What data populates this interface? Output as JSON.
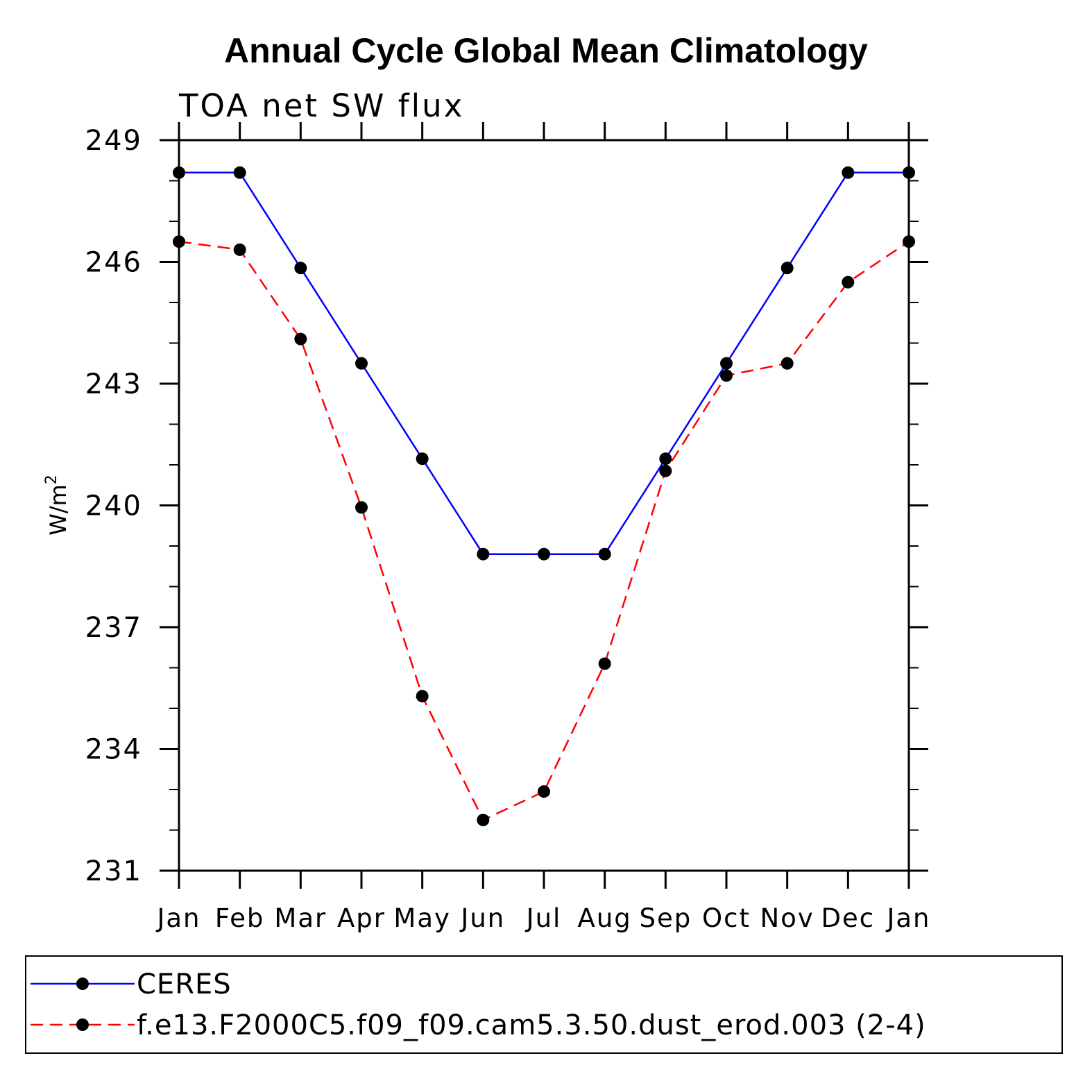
{
  "chart_data": {
    "type": "line",
    "title": "Annual Cycle Global Mean Climatology",
    "subtitle": "TOA net SW flux",
    "ylabel": "W/m",
    "ylabel_superscript": "2",
    "xlabel": "",
    "categories": [
      "Jan",
      "Feb",
      "Mar",
      "Apr",
      "May",
      "Jun",
      "Jul",
      "Aug",
      "Sep",
      "Oct",
      "Nov",
      "Dec",
      "Jan"
    ],
    "ylim": [
      231,
      249
    ],
    "yticks": [
      231,
      234,
      237,
      240,
      243,
      246,
      249
    ],
    "series": [
      {
        "name": "CERES",
        "color": "#0000ff",
        "dash": "solid",
        "values": [
          248.2,
          248.2,
          245.85,
          243.5,
          241.15,
          238.8,
          238.8,
          238.8,
          241.15,
          243.5,
          245.85,
          248.2,
          248.2
        ]
      },
      {
        "name": "f.e13.F2000C5.f09_f09.cam5.3.50.dust_erod.003 (2-4)",
        "color": "#ff0000",
        "dash": "dashed",
        "values": [
          246.5,
          246.3,
          244.1,
          239.95,
          235.3,
          232.25,
          232.95,
          236.1,
          240.85,
          243.2,
          243.5,
          245.5,
          246.5
        ]
      }
    ],
    "legend_position": "bottom"
  }
}
